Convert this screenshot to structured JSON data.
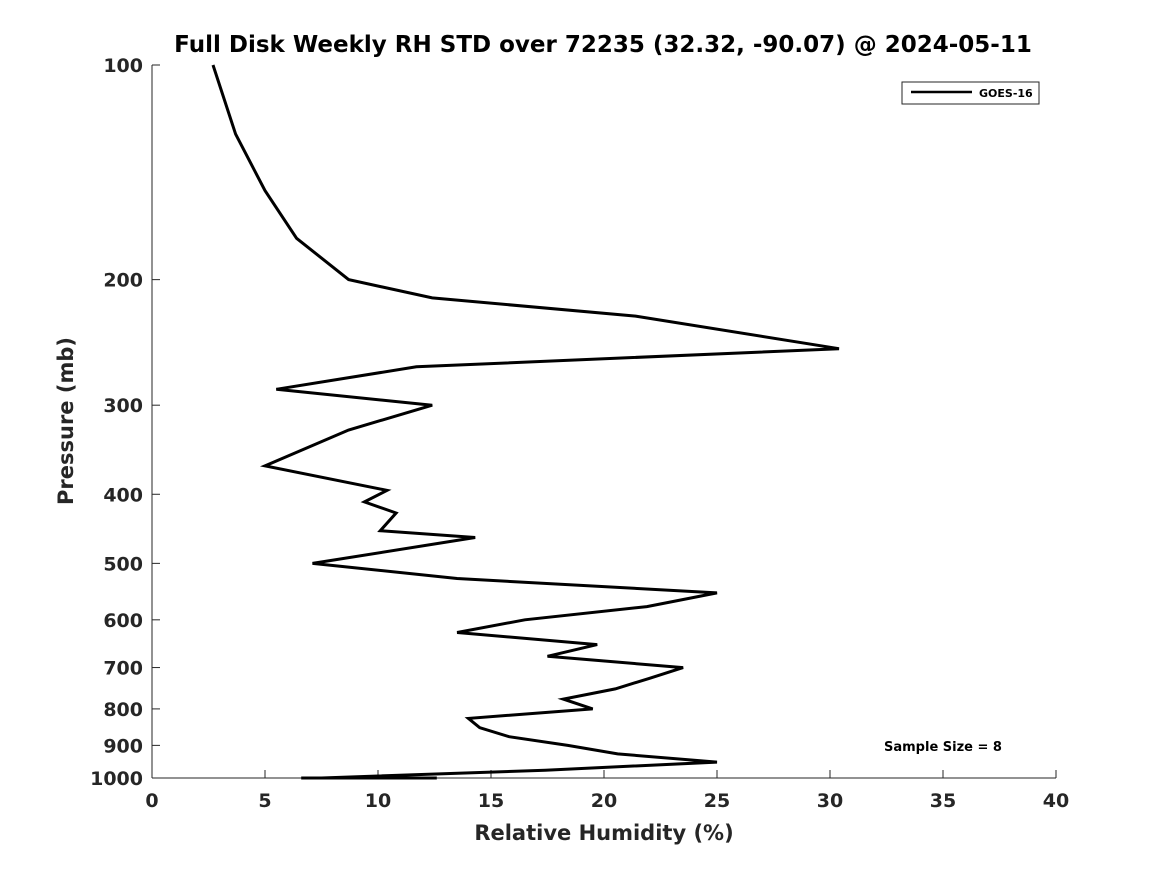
{
  "chart_data": {
    "type": "line",
    "title": "Full Disk Weekly RH STD over 72235 (32.32, -90.07) @ 2024-05-11",
    "xlabel": "Relative Humidity (%)",
    "ylabel": "Pressure (mb)",
    "xlim": [
      0,
      40
    ],
    "ylim": [
      100,
      1000
    ],
    "yscale": "log",
    "yreversed": true,
    "xticks": [
      "0",
      "5",
      "10",
      "15",
      "20",
      "25",
      "30",
      "35",
      "40"
    ],
    "yticks": [
      "100",
      "200",
      "300",
      "400",
      "500",
      "600",
      "700",
      "800",
      "900",
      "1000"
    ],
    "legend_position": "top-right",
    "annotation": "Sample Size = 8",
    "series": [
      {
        "name": "GOES-16",
        "color": "#000000",
        "points": [
          [
            2.7,
            100
          ],
          [
            3.7,
            125
          ],
          [
            5.0,
            150
          ],
          [
            6.4,
            175
          ],
          [
            8.7,
            200
          ],
          [
            12.4,
            200
          ],
          [
            21.4,
            225
          ],
          [
            30.4,
            250
          ],
          [
            11.7,
            265
          ],
          [
            5.5,
            285
          ],
          [
            12.4,
            300
          ],
          [
            8.7,
            325
          ],
          [
            5.0,
            365
          ],
          [
            10.4,
            395
          ],
          [
            9.4,
            410
          ],
          [
            10.8,
            425
          ],
          [
            10.1,
            450
          ],
          [
            14.3,
            460
          ],
          [
            7.1,
            500
          ],
          [
            13.5,
            525
          ],
          [
            25.0,
            550
          ],
          [
            21.9,
            575
          ],
          [
            16.5,
            600
          ],
          [
            13.5,
            625
          ],
          [
            19.7,
            650
          ],
          [
            17.5,
            675
          ],
          [
            23.5,
            700
          ],
          [
            22.0,
            725
          ],
          [
            20.5,
            750
          ],
          [
            18.2,
            775
          ],
          [
            19.5,
            800
          ],
          [
            14.0,
            825
          ],
          [
            14.5,
            850
          ],
          [
            15.8,
            875
          ],
          [
            18.4,
            900
          ],
          [
            20.6,
            925
          ],
          [
            25.0,
            950
          ],
          [
            17.4,
            975
          ],
          [
            7.5,
            1000
          ],
          [
            7.6,
            1000
          ],
          [
            7.4,
            1000
          ],
          [
            6.6,
            1000
          ],
          [
            6.9,
            1000
          ],
          [
            7.7,
            1000
          ],
          [
            9.3,
            1000
          ],
          [
            12.6,
            1000
          ]
        ]
      }
    ]
  }
}
